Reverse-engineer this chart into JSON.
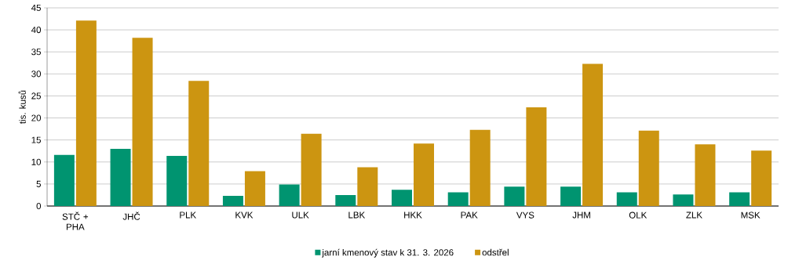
{
  "chart_data": {
    "type": "bar",
    "ylabel": "tis. kusů",
    "categories": [
      "STČ + PHA",
      "JHČ",
      "PLK",
      "KVK",
      "ULK",
      "LBK",
      "HKK",
      "PAK",
      "VYS",
      "JHM",
      "OLK",
      "ZLK",
      "MSK"
    ],
    "series": [
      {
        "name": "jarní kmenový stav k 31. 3. 2026",
        "color": "#009470",
        "values": [
          11.6,
          13.0,
          11.4,
          2.3,
          4.9,
          2.5,
          3.7,
          3.1,
          4.4,
          4.4,
          3.1,
          2.6,
          3.1
        ]
      },
      {
        "name": "odstřel",
        "color": "#cc9511",
        "values": [
          42.1,
          38.2,
          28.4,
          7.9,
          16.4,
          8.8,
          14.2,
          17.3,
          22.4,
          32.3,
          17.1,
          14.0,
          12.6
        ]
      }
    ],
    "ylim": [
      0,
      45
    ],
    "yticks": [
      0,
      5,
      10,
      15,
      20,
      25,
      30,
      35,
      40,
      45
    ],
    "grid": "y",
    "legend": "bottom"
  }
}
